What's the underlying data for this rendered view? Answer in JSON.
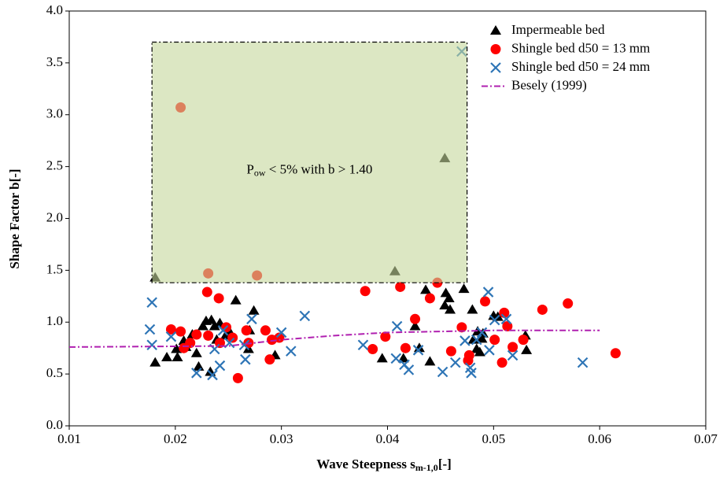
{
  "chart_data": {
    "type": "scatter",
    "xlabel": {
      "text": "Wave Steepness s",
      "sub": "m-1,0",
      "suffix": "[-]"
    },
    "ylabel": "Shape Factor b[-]",
    "xlim": [
      0.01,
      0.07
    ],
    "xticks": [
      0.01,
      0.02,
      0.03,
      0.04,
      0.05,
      0.06,
      0.07
    ],
    "ylim": [
      0,
      4
    ],
    "yticks": [
      {
        "value": 0,
        "label": "0.0"
      },
      0.5,
      {
        "value": 1,
        "label": "1.0"
      },
      1.5,
      {
        "value": 2,
        "label": "2.0"
      },
      2.5,
      {
        "value": 3,
        "label": "3.0"
      },
      3.5,
      {
        "value": 4,
        "label": "4.0"
      }
    ],
    "grid": false,
    "legend": "upper right",
    "region": {
      "x": [
        0.0178,
        0.0475
      ],
      "y": [
        1.38,
        3.7
      ],
      "color": "#c4d79b",
      "label": {
        "text": "P",
        "sub": "ow",
        "suffix": " < 5% with b > 1.40"
      }
    },
    "series": [
      {
        "name": "Impermeable bed",
        "color": "#000000",
        "marker": "triangle",
        "x": [
          0.0181,
          0.0192,
          0.0202,
          0.0201,
          0.0208,
          0.021,
          0.0216,
          0.0229,
          0.0234,
          0.0239,
          0.0237,
          0.0226,
          0.022,
          0.0233,
          0.0222,
          0.0242,
          0.0248,
          0.0251,
          0.0257,
          0.0249,
          0.027,
          0.0274,
          0.0269,
          0.0294,
          0.0181,
          0.0407,
          0.0454,
          0.0395,
          0.0426,
          0.043,
          0.044,
          0.0436,
          0.0454,
          0.0455,
          0.0458,
          0.0472,
          0.0459,
          0.048,
          0.0481,
          0.0484,
          0.0487,
          0.0489,
          0.049,
          0.05,
          0.0504,
          0.053,
          0.0531,
          0.0485,
          0.0415
        ],
        "values": [
          0.61,
          0.66,
          0.66,
          0.74,
          0.82,
          0.76,
          0.88,
          1.01,
          1.02,
          0.83,
          0.96,
          0.96,
          0.7,
          0.52,
          0.57,
          0.99,
          0.88,
          0.91,
          1.21,
          0.87,
          0.92,
          1.11,
          0.74,
          0.68,
          1.43,
          1.49,
          2.58,
          0.65,
          0.96,
          0.75,
          0.62,
          1.31,
          1.16,
          1.28,
          1.23,
          1.32,
          1.12,
          1.12,
          0.83,
          0.74,
          0.71,
          0.84,
          0.89,
          1.06,
          1.05,
          0.87,
          0.73,
          0.91,
          0.65
        ]
      },
      {
        "name": "Shingle bed d50 = 13 mm",
        "color": "#ff0000",
        "marker": "circle",
        "x": [
          0.0205,
          0.0231,
          0.0277,
          0.0196,
          0.0205,
          0.0208,
          0.0214,
          0.022,
          0.023,
          0.0241,
          0.0231,
          0.0242,
          0.0254,
          0.0259,
          0.0267,
          0.0269,
          0.0285,
          0.0291,
          0.0289,
          0.0298,
          0.0248,
          0.0379,
          0.0386,
          0.0398,
          0.0412,
          0.0417,
          0.0426,
          0.044,
          0.0447,
          0.046,
          0.047,
          0.0477,
          0.0476,
          0.0492,
          0.0501,
          0.051,
          0.0513,
          0.0508,
          0.0518,
          0.0528,
          0.0546,
          0.057,
          0.0615
        ],
        "values": [
          3.07,
          1.47,
          1.45,
          0.93,
          0.91,
          0.75,
          0.8,
          0.88,
          1.29,
          1.23,
          0.87,
          0.8,
          0.85,
          0.46,
          0.92,
          0.8,
          0.92,
          0.83,
          0.64,
          0.85,
          0.95,
          1.3,
          0.74,
          0.86,
          1.34,
          0.75,
          1.03,
          1.23,
          1.38,
          0.72,
          0.95,
          0.68,
          0.63,
          1.2,
          0.83,
          1.09,
          0.96,
          0.61,
          0.76,
          0.83,
          1.12,
          1.18,
          0.7
        ]
      },
      {
        "name": "Shingle bed d50 = 24 mm",
        "color": "#2e75b6",
        "marker": "x",
        "x": [
          0.047,
          0.0178,
          0.0178,
          0.0176,
          0.0196,
          0.022,
          0.0235,
          0.0242,
          0.0245,
          0.0251,
          0.0237,
          0.0266,
          0.0272,
          0.0265,
          0.03,
          0.0309,
          0.0322,
          0.0377,
          0.0409,
          0.0408,
          0.042,
          0.0416,
          0.0429,
          0.0452,
          0.0464,
          0.0479,
          0.0478,
          0.0484,
          0.0489,
          0.0495,
          0.0501,
          0.0496,
          0.0512,
          0.0518,
          0.0584,
          0.0473
        ],
        "values": [
          3.61,
          1.19,
          0.78,
          0.93,
          0.86,
          0.51,
          0.49,
          0.58,
          0.92,
          0.8,
          0.74,
          0.64,
          1.03,
          0.78,
          0.9,
          0.72,
          1.06,
          0.78,
          0.96,
          0.65,
          0.54,
          0.59,
          0.73,
          0.52,
          0.61,
          0.51,
          0.56,
          0.83,
          0.9,
          1.29,
          1.02,
          0.73,
          1.03,
          0.68,
          0.61,
          0.82
        ]
      },
      {
        "name": "Besely (1999)",
        "color": "#b020b0",
        "marker": "dashdot-line",
        "x": [
          0.01,
          0.025,
          0.03,
          0.035,
          0.04,
          0.045,
          0.05,
          0.06
        ],
        "values": [
          0.76,
          0.77,
          0.83,
          0.87,
          0.9,
          0.91,
          0.92,
          0.92
        ]
      }
    ]
  }
}
